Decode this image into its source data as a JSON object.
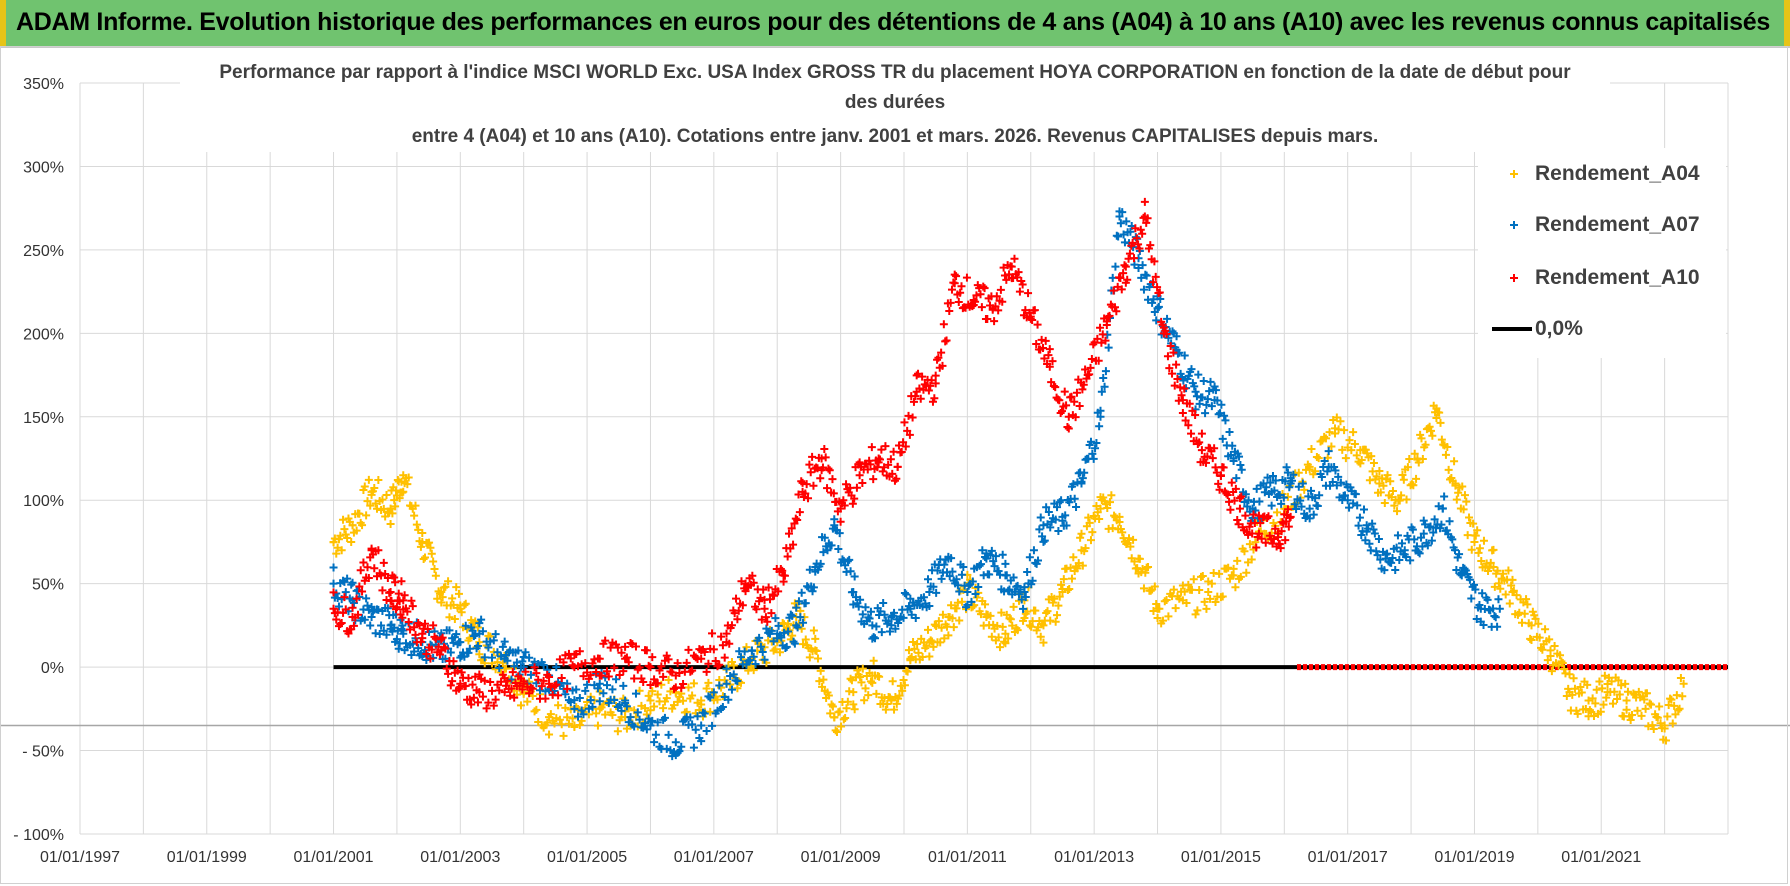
{
  "banner": {
    "title": "ADAM Informe. Evolution historique des performances en euros pour des détentions de 4 ans (A04) à 10 ans (A10) avec les revenus connus capitalisés"
  },
  "colors": {
    "banner_bg": "#70c36f",
    "a04": "#ffc000",
    "a07": "#0070c0",
    "a10": "#ff0000",
    "zero": "#000000",
    "grid": "#d9d9d9"
  },
  "chart_data": {
    "type": "scatter",
    "title_lines": [
      "Performance par rapport à l'indice MSCI WORLD Exc. USA Index GROSS TR  du placement HOYA CORPORATION en fonction de la date de début pour",
      "des durées",
      "entre 4 (A04) et 10 ans (A10).  Cotations entre janv. 2001 et mars. 2026.  Revenus CAPITALISES depuis mars."
    ],
    "xlabel": "",
    "ylabel": "",
    "x_range": [
      1997.0,
      2023.0
    ],
    "y_range": [
      -100,
      350
    ],
    "x_ticks": [
      "01/01/1997",
      "01/01/1999",
      "01/01/2001",
      "01/01/2003",
      "01/01/2005",
      "01/01/2007",
      "01/01/2009",
      "01/01/2011",
      "01/01/2013",
      "01/01/2015",
      "01/01/2017",
      "01/01/2019",
      "01/01/2021"
    ],
    "x_tick_years": [
      1997,
      1999,
      2001,
      2003,
      2005,
      2007,
      2009,
      2011,
      2013,
      2015,
      2017,
      2019,
      2021
    ],
    "y_ticks": [
      -100,
      -50,
      0,
      50,
      100,
      150,
      200,
      250,
      300,
      350
    ],
    "y_tick_labels": [
      "- 100%",
      "- 50%",
      "0%",
      "50%",
      "100%",
      "150%",
      "200%",
      "250%",
      "300%",
      "350%"
    ],
    "series": [
      {
        "name": "Rendement_A04",
        "color": "#ffc000",
        "x": [
          2001.0,
          2001.3,
          2001.6,
          2001.9,
          2002.1,
          2002.4,
          2002.7,
          2003.0,
          2003.3,
          2003.7,
          2004.0,
          2004.4,
          2004.8,
          2005.2,
          2005.6,
          2006.0,
          2006.4,
          2006.8,
          2007.2,
          2007.6,
          2008.0,
          2008.3,
          2008.6,
          2008.9,
          2009.2,
          2009.5,
          2009.8,
          2010.1,
          2010.4,
          2010.7,
          2011.0,
          2011.3,
          2011.6,
          2011.9,
          2012.2,
          2012.5,
          2012.8,
          2013.1,
          2013.4,
          2013.7,
          2014.0,
          2014.4,
          2014.8,
          2015.2,
          2015.6,
          2016.0,
          2016.4,
          2016.8,
          2017.2,
          2017.5,
          2017.8,
          2018.1,
          2018.4,
          2018.7,
          2019.0,
          2019.3,
          2019.6,
          2019.9,
          2020.2,
          2020.5,
          2020.8,
          2021.1,
          2021.4,
          2021.7,
          2022.0,
          2022.3
        ],
        "y": [
          75,
          85,
          105,
          95,
          115,
          75,
          45,
          35,
          15,
          5,
          -15,
          -30,
          -35,
          -25,
          -30,
          -20,
          -15,
          -20,
          -10,
          5,
          15,
          30,
          10,
          -30,
          -15,
          -5,
          -20,
          5,
          15,
          30,
          45,
          30,
          20,
          40,
          25,
          45,
          70,
          95,
          90,
          65,
          35,
          40,
          45,
          55,
          80,
          95,
          120,
          140,
          130,
          110,
          100,
          125,
          155,
          110,
          75,
          60,
          45,
          25,
          10,
          -15,
          -20,
          -15,
          -20,
          -25,
          -35,
          -10
        ]
      },
      {
        "name": "Rendement_A07",
        "color": "#0070c0",
        "x": [
          2001.0,
          2001.3,
          2001.6,
          2001.9,
          2002.1,
          2002.4,
          2002.7,
          2003.0,
          2003.3,
          2003.7,
          2004.0,
          2004.4,
          2004.8,
          2005.2,
          2005.6,
          2006.0,
          2006.4,
          2006.8,
          2007.2,
          2007.6,
          2008.0,
          2008.3,
          2008.6,
          2008.9,
          2009.2,
          2009.5,
          2009.8,
          2010.1,
          2010.4,
          2010.7,
          2011.0,
          2011.3,
          2011.6,
          2011.9,
          2012.2,
          2012.5,
          2012.8,
          2013.1,
          2013.4,
          2013.7,
          2014.0,
          2014.3,
          2014.6,
          2014.9,
          2015.2,
          2015.5,
          2015.8,
          2016.1,
          2016.4,
          2016.7,
          2017.0,
          2017.3,
          2017.6,
          2017.9,
          2018.2,
          2018.5,
          2018.8,
          2019.1,
          2019.4
        ],
        "y": [
          50,
          40,
          30,
          25,
          20,
          15,
          10,
          15,
          20,
          5,
          0,
          -5,
          -25,
          -10,
          -20,
          -35,
          -45,
          -35,
          -10,
          10,
          20,
          25,
          60,
          85,
          45,
          25,
          30,
          35,
          45,
          65,
          45,
          65,
          55,
          45,
          85,
          90,
          110,
          150,
          270,
          245,
          215,
          190,
          165,
          160,
          125,
          95,
          105,
          110,
          95,
          120,
          100,
          85,
          65,
          70,
          80,
          95,
          55,
          35,
          35
        ]
      },
      {
        "name": "Rendement_A10",
        "color": "#ff0000",
        "x": [
          2001.0,
          2001.3,
          2001.6,
          2001.9,
          2002.1,
          2002.4,
          2002.7,
          2003.0,
          2003.3,
          2003.7,
          2004.0,
          2004.4,
          2004.8,
          2005.2,
          2005.6,
          2006.0,
          2006.4,
          2006.8,
          2007.2,
          2007.5,
          2007.8,
          2008.1,
          2008.4,
          2008.7,
          2009.0,
          2009.3,
          2009.6,
          2009.9,
          2010.2,
          2010.5,
          2010.8,
          2011.1,
          2011.4,
          2011.7,
          2012.0,
          2012.3,
          2012.6,
          2012.9,
          2013.2,
          2013.5,
          2013.8,
          2014.1,
          2014.4,
          2014.7,
          2015.0,
          2015.3,
          2015.6,
          2015.9,
          2016.1
        ],
        "y": [
          35,
          30,
          70,
          45,
          40,
          20,
          10,
          -10,
          -15,
          -15,
          -10,
          -10,
          0,
          5,
          5,
          0,
          -5,
          5,
          15,
          50,
          35,
          55,
          105,
          125,
          95,
          115,
          125,
          120,
          165,
          170,
          230,
          220,
          215,
          240,
          210,
          180,
          150,
          175,
          205,
          240,
          270,
          200,
          160,
          130,
          115,
          95,
          80,
          80,
          90
        ]
      },
      {
        "name": "0,0%",
        "color": "#000000",
        "x_start": 2001.0,
        "x_end": 2023.0,
        "y": 0,
        "red_overlay_from": 2016.2
      }
    ],
    "legend": {
      "position": "top-right",
      "entries": [
        "Rendement_A04",
        "Rendement_A07",
        "Rendement_A10",
        "0,0%"
      ]
    },
    "grid": true
  }
}
